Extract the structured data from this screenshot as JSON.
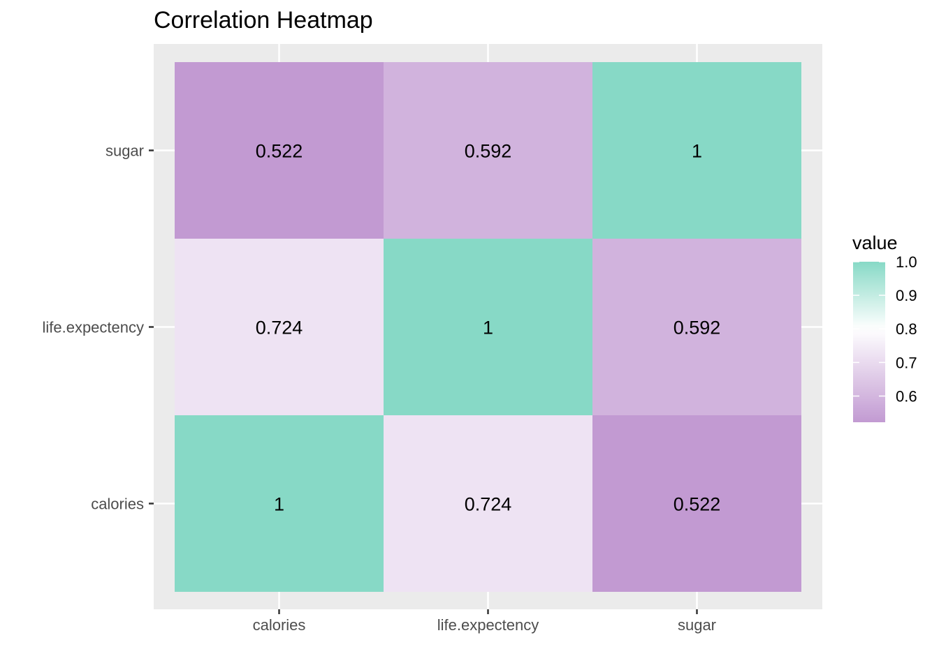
{
  "chart_data": {
    "type": "heatmap",
    "title": "Correlation Heatmap",
    "x_categories": [
      "calories",
      "life.expectency",
      "sugar"
    ],
    "y_categories": [
      "calories",
      "life.expectency",
      "sugar"
    ],
    "cells": [
      {
        "x": "calories",
        "y": "calories",
        "value": 1,
        "label": "1"
      },
      {
        "x": "life.expectency",
        "y": "calories",
        "value": 0.724,
        "label": "0.724"
      },
      {
        "x": "sugar",
        "y": "calories",
        "value": 0.522,
        "label": "0.522"
      },
      {
        "x": "calories",
        "y": "life.expectency",
        "value": 0.724,
        "label": "0.724"
      },
      {
        "x": "life.expectency",
        "y": "life.expectency",
        "value": 1,
        "label": "1"
      },
      {
        "x": "sugar",
        "y": "life.expectency",
        "value": 0.592,
        "label": "0.592"
      },
      {
        "x": "calories",
        "y": "sugar",
        "value": 0.522,
        "label": "0.522"
      },
      {
        "x": "life.expectency",
        "y": "sugar",
        "value": 0.592,
        "label": "0.592"
      },
      {
        "x": "sugar",
        "y": "sugar",
        "value": 1,
        "label": "1"
      }
    ],
    "legend": {
      "title": "value",
      "ticks": [
        1.0,
        0.9,
        0.8,
        0.7,
        0.6
      ],
      "tick_labels": [
        "1.0",
        "0.9",
        "0.8",
        "0.7",
        "0.6"
      ],
      "range": [
        0.522,
        1.0
      ],
      "midpoint": 0.8
    },
    "colors": {
      "low": "#c29ad2",
      "mid": "#ffffff",
      "high": "#87d9c6",
      "panel_background": "#ebebeb",
      "gridline": "#ffffff",
      "tick_label": "#4d4d4d",
      "axis_tick": "#333333"
    },
    "grid": true
  }
}
